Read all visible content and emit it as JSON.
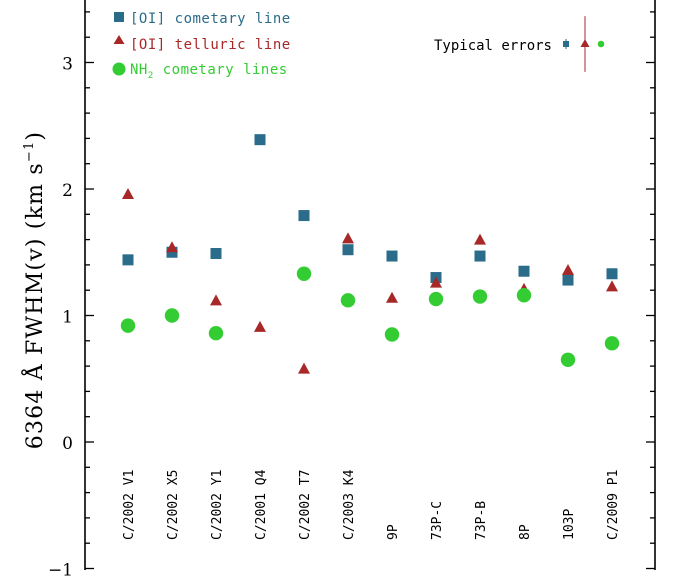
{
  "chart_data": {
    "type": "scatter",
    "xlabel": "",
    "ylabel": "6364 Å FWHM(v) (km s",
    "ylabel_sup": "−1",
    "ylabel_close": ")",
    "ylim": [
      -1,
      3.5
    ],
    "yticks": [
      -1,
      0,
      1,
      2,
      3
    ],
    "ytick_labels": [
      "−1",
      "0",
      "1",
      "2",
      "3"
    ],
    "grid": false,
    "legend_position": "top-left",
    "categories": [
      "C/2002 V1",
      "C/2002 X5",
      "C/2002 Y1",
      "C/2001 Q4",
      "C/2002 T7",
      "C/2003 K4",
      "9P",
      "73P-C",
      "73P-B",
      "8P",
      "103P",
      "C/2009 P1"
    ],
    "series": [
      {
        "name": "[OI] cometary line",
        "marker": "square",
        "color": "#2a6c8a",
        "values": [
          1.44,
          1.5,
          1.49,
          2.39,
          1.79,
          1.52,
          1.47,
          1.3,
          1.47,
          1.35,
          1.28,
          1.33
        ]
      },
      {
        "name": "[OI] telluric line",
        "marker": "triangle",
        "color": "#a82828",
        "values": [
          1.96,
          1.54,
          1.12,
          0.91,
          0.58,
          1.61,
          1.14,
          1.26,
          1.6,
          1.21,
          1.36,
          1.23
        ]
      },
      {
        "name": "NH",
        "name_sub": "2",
        "name_suffix": " cometary lines",
        "marker": "circle",
        "color": "#33cc33",
        "values": [
          0.92,
          1.0,
          0.86,
          null,
          1.33,
          1.12,
          0.85,
          1.13,
          1.15,
          1.16,
          0.65,
          0.78
        ]
      }
    ],
    "typical_errors": {
      "label": "Typical errors",
      "square_error": 0.04,
      "triangle_error": 0.22,
      "circle_error": 0.02
    }
  }
}
